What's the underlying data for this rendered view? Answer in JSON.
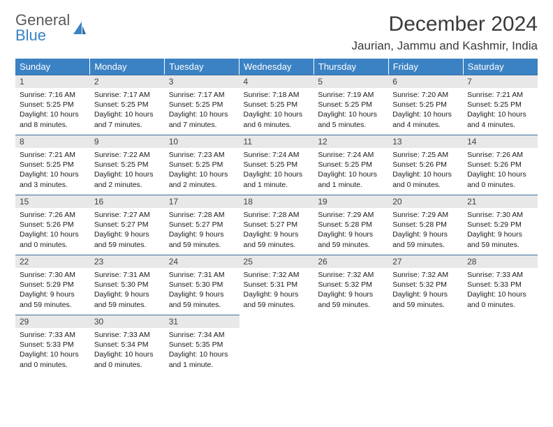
{
  "logo": {
    "line1": "General",
    "line2": "Blue"
  },
  "title": "December 2024",
  "location": "Jaurian, Jammu and Kashmir, India",
  "colors": {
    "header_bg": "#3b82c4",
    "header_fg": "#ffffff",
    "daynum_bg": "#e8e8e8",
    "daynum_border": "#3b6ea0",
    "text": "#1a1a1a",
    "logo_gray": "#595959",
    "logo_blue": "#3b82c4"
  },
  "fonts": {
    "title_pt": 30,
    "location_pt": 17,
    "header_pt": 13,
    "daynum_pt": 12,
    "body_pt": 10.5
  },
  "weekdays": [
    "Sunday",
    "Monday",
    "Tuesday",
    "Wednesday",
    "Thursday",
    "Friday",
    "Saturday"
  ],
  "weeks": [
    [
      {
        "n": "1",
        "sr": "7:16 AM",
        "ss": "5:25 PM",
        "dl": "10 hours and 8 minutes."
      },
      {
        "n": "2",
        "sr": "7:17 AM",
        "ss": "5:25 PM",
        "dl": "10 hours and 7 minutes."
      },
      {
        "n": "3",
        "sr": "7:17 AM",
        "ss": "5:25 PM",
        "dl": "10 hours and 7 minutes."
      },
      {
        "n": "4",
        "sr": "7:18 AM",
        "ss": "5:25 PM",
        "dl": "10 hours and 6 minutes."
      },
      {
        "n": "5",
        "sr": "7:19 AM",
        "ss": "5:25 PM",
        "dl": "10 hours and 5 minutes."
      },
      {
        "n": "6",
        "sr": "7:20 AM",
        "ss": "5:25 PM",
        "dl": "10 hours and 4 minutes."
      },
      {
        "n": "7",
        "sr": "7:21 AM",
        "ss": "5:25 PM",
        "dl": "10 hours and 4 minutes."
      }
    ],
    [
      {
        "n": "8",
        "sr": "7:21 AM",
        "ss": "5:25 PM",
        "dl": "10 hours and 3 minutes."
      },
      {
        "n": "9",
        "sr": "7:22 AM",
        "ss": "5:25 PM",
        "dl": "10 hours and 2 minutes."
      },
      {
        "n": "10",
        "sr": "7:23 AM",
        "ss": "5:25 PM",
        "dl": "10 hours and 2 minutes."
      },
      {
        "n": "11",
        "sr": "7:24 AM",
        "ss": "5:25 PM",
        "dl": "10 hours and 1 minute."
      },
      {
        "n": "12",
        "sr": "7:24 AM",
        "ss": "5:25 PM",
        "dl": "10 hours and 1 minute."
      },
      {
        "n": "13",
        "sr": "7:25 AM",
        "ss": "5:26 PM",
        "dl": "10 hours and 0 minutes."
      },
      {
        "n": "14",
        "sr": "7:26 AM",
        "ss": "5:26 PM",
        "dl": "10 hours and 0 minutes."
      }
    ],
    [
      {
        "n": "15",
        "sr": "7:26 AM",
        "ss": "5:26 PM",
        "dl": "10 hours and 0 minutes."
      },
      {
        "n": "16",
        "sr": "7:27 AM",
        "ss": "5:27 PM",
        "dl": "9 hours and 59 minutes."
      },
      {
        "n": "17",
        "sr": "7:28 AM",
        "ss": "5:27 PM",
        "dl": "9 hours and 59 minutes."
      },
      {
        "n": "18",
        "sr": "7:28 AM",
        "ss": "5:27 PM",
        "dl": "9 hours and 59 minutes."
      },
      {
        "n": "19",
        "sr": "7:29 AM",
        "ss": "5:28 PM",
        "dl": "9 hours and 59 minutes."
      },
      {
        "n": "20",
        "sr": "7:29 AM",
        "ss": "5:28 PM",
        "dl": "9 hours and 59 minutes."
      },
      {
        "n": "21",
        "sr": "7:30 AM",
        "ss": "5:29 PM",
        "dl": "9 hours and 59 minutes."
      }
    ],
    [
      {
        "n": "22",
        "sr": "7:30 AM",
        "ss": "5:29 PM",
        "dl": "9 hours and 59 minutes."
      },
      {
        "n": "23",
        "sr": "7:31 AM",
        "ss": "5:30 PM",
        "dl": "9 hours and 59 minutes."
      },
      {
        "n": "24",
        "sr": "7:31 AM",
        "ss": "5:30 PM",
        "dl": "9 hours and 59 minutes."
      },
      {
        "n": "25",
        "sr": "7:32 AM",
        "ss": "5:31 PM",
        "dl": "9 hours and 59 minutes."
      },
      {
        "n": "26",
        "sr": "7:32 AM",
        "ss": "5:32 PM",
        "dl": "9 hours and 59 minutes."
      },
      {
        "n": "27",
        "sr": "7:32 AM",
        "ss": "5:32 PM",
        "dl": "9 hours and 59 minutes."
      },
      {
        "n": "28",
        "sr": "7:33 AM",
        "ss": "5:33 PM",
        "dl": "10 hours and 0 minutes."
      }
    ],
    [
      {
        "n": "29",
        "sr": "7:33 AM",
        "ss": "5:33 PM",
        "dl": "10 hours and 0 minutes."
      },
      {
        "n": "30",
        "sr": "7:33 AM",
        "ss": "5:34 PM",
        "dl": "10 hours and 0 minutes."
      },
      {
        "n": "31",
        "sr": "7:34 AM",
        "ss": "5:35 PM",
        "dl": "10 hours and 1 minute."
      },
      null,
      null,
      null,
      null
    ]
  ]
}
